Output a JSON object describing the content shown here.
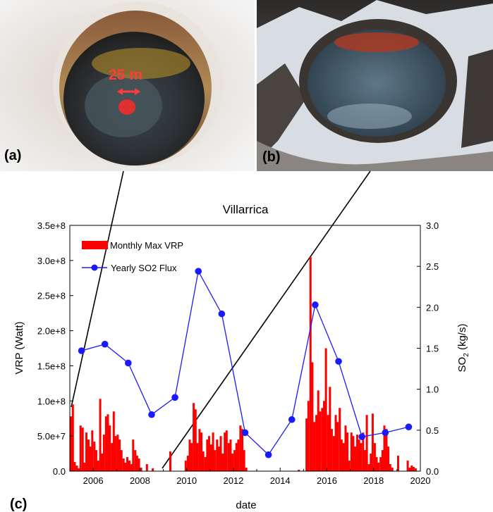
{
  "photos": {
    "a": {
      "label": "(a)",
      "annotation": "25 m"
    },
    "b": {
      "label": "(b)"
    }
  },
  "panel_c_label": "(c)",
  "colors": {
    "vrp_bar": "#ff0000",
    "so2_line": "#1a1aff",
    "so2_marker": "#1a1aff"
  },
  "chart_data": {
    "type": "bar",
    "title": "Villarrica",
    "xlabel": "date",
    "ylabel_left": "VRP (Watt)",
    "ylabel_right_main": "SO",
    "ylabel_right_sub": "2",
    "ylabel_right_tail": " (kg/s)",
    "xlim": [
      2005.0,
      2020.0
    ],
    "ylim_left": [
      0,
      350000000
    ],
    "ylim_right": [
      0,
      3.0
    ],
    "x_ticks": [
      2006,
      2008,
      2010,
      2012,
      2014,
      2016,
      2018,
      2020
    ],
    "x_tick_labels": [
      "2006",
      "2008",
      "2010",
      "2012",
      "2014",
      "2016",
      "2018",
      "2020"
    ],
    "y_left_ticks": [
      0,
      50000000,
      100000000,
      150000000,
      200000000,
      250000000,
      300000000,
      350000000
    ],
    "y_left_tick_labels": [
      "0.0",
      "5.0e+7",
      "1.0e+8",
      "1.5e+8",
      "2.0e+8",
      "2.5e+8",
      "3.0e+8",
      "3.5e+8"
    ],
    "y_right_ticks": [
      0,
      0.5,
      1.0,
      1.5,
      2.0,
      2.5,
      3.0
    ],
    "y_right_tick_labels": [
      "0.0",
      "0.5",
      "1.0",
      "1.5",
      "2.0",
      "2.5",
      "3.0"
    ],
    "legend_position": "top-left",
    "series": [
      {
        "name": "Monthly Max VRP",
        "kind": "bar",
        "x": [
          2005.05,
          2005.13,
          2005.21,
          2005.3,
          2005.38,
          2005.46,
          2005.55,
          2005.63,
          2005.71,
          2005.8,
          2005.88,
          2005.96,
          2006.05,
          2006.13,
          2006.21,
          2006.3,
          2006.38,
          2006.46,
          2006.55,
          2006.63,
          2006.71,
          2006.8,
          2006.88,
          2006.96,
          2007.05,
          2007.13,
          2007.21,
          2007.3,
          2007.38,
          2007.46,
          2007.55,
          2007.63,
          2007.71,
          2007.8,
          2007.88,
          2007.96,
          2008.05,
          2008.3,
          2008.55,
          2009.3,
          2009.96,
          2010.05,
          2010.13,
          2010.21,
          2010.3,
          2010.38,
          2010.46,
          2010.55,
          2010.63,
          2010.71,
          2010.8,
          2010.88,
          2010.96,
          2011.05,
          2011.13,
          2011.21,
          2011.3,
          2011.38,
          2011.46,
          2011.55,
          2011.63,
          2011.71,
          2011.8,
          2011.88,
          2011.96,
          2012.05,
          2012.13,
          2012.21,
          2012.3,
          2012.38,
          2012.46,
          2012.55,
          2014.8,
          2015.13,
          2015.21,
          2015.3,
          2015.38,
          2015.46,
          2015.55,
          2015.63,
          2015.71,
          2015.8,
          2015.88,
          2015.96,
          2016.05,
          2016.13,
          2016.21,
          2016.3,
          2016.38,
          2016.46,
          2016.55,
          2016.63,
          2016.71,
          2016.8,
          2016.88,
          2016.96,
          2017.05,
          2017.13,
          2017.21,
          2017.3,
          2017.38,
          2017.46,
          2017.55,
          2017.63,
          2017.71,
          2017.8,
          2017.88,
          2017.96,
          2018.05,
          2018.13,
          2018.21,
          2018.3,
          2018.38,
          2018.46,
          2018.55,
          2018.63,
          2018.71,
          2018.8,
          2019.05,
          2019.46,
          2019.55,
          2019.63,
          2019.71,
          2019.8
        ],
        "values": [
          78000000,
          95000000,
          13000000,
          8000000,
          4000000,
          65000000,
          62000000,
          12000000,
          55000000,
          45000000,
          35000000,
          58000000,
          42000000,
          30000000,
          15000000,
          103000000,
          25000000,
          52000000,
          78000000,
          81000000,
          65000000,
          40000000,
          85000000,
          50000000,
          52000000,
          45000000,
          30000000,
          18000000,
          12000000,
          20000000,
          15000000,
          10000000,
          45000000,
          30000000,
          22000000,
          18000000,
          5000000,
          10000000,
          4000000,
          28000000,
          15000000,
          22000000,
          45000000,
          40000000,
          97000000,
          88000000,
          40000000,
          60000000,
          55000000,
          28000000,
          20000000,
          45000000,
          50000000,
          38000000,
          55000000,
          30000000,
          45000000,
          35000000,
          50000000,
          25000000,
          55000000,
          58000000,
          40000000,
          45000000,
          25000000,
          30000000,
          40000000,
          45000000,
          65000000,
          60000000,
          30000000,
          5000000,
          2000000,
          75000000,
          100000000,
          305000000,
          155000000,
          70000000,
          80000000,
          115000000,
          85000000,
          90000000,
          100000000,
          175000000,
          80000000,
          120000000,
          60000000,
          50000000,
          80000000,
          70000000,
          90000000,
          45000000,
          40000000,
          65000000,
          55000000,
          15000000,
          55000000,
          50000000,
          35000000,
          52000000,
          45000000,
          40000000,
          55000000,
          30000000,
          80000000,
          10000000,
          25000000,
          82000000,
          40000000,
          20000000,
          12000000,
          20000000,
          30000000,
          65000000,
          60000000,
          35000000,
          10000000,
          5000000,
          22000000,
          15000000,
          5000000,
          8000000,
          6000000,
          4000000
        ]
      },
      {
        "name": "Yearly SO2 Flux",
        "kind": "line",
        "x": [
          2005.5,
          2006.5,
          2007.5,
          2008.5,
          2009.5,
          2010.5,
          2011.5,
          2012.5,
          2013.5,
          2014.5,
          2015.5,
          2016.5,
          2017.5,
          2018.5,
          2019.5
        ],
        "values": [
          1.47,
          1.55,
          1.32,
          0.69,
          0.9,
          2.44,
          1.92,
          0.47,
          0.2,
          0.63,
          2.03,
          1.34,
          0.42,
          0.47,
          0.54
        ]
      }
    ]
  }
}
